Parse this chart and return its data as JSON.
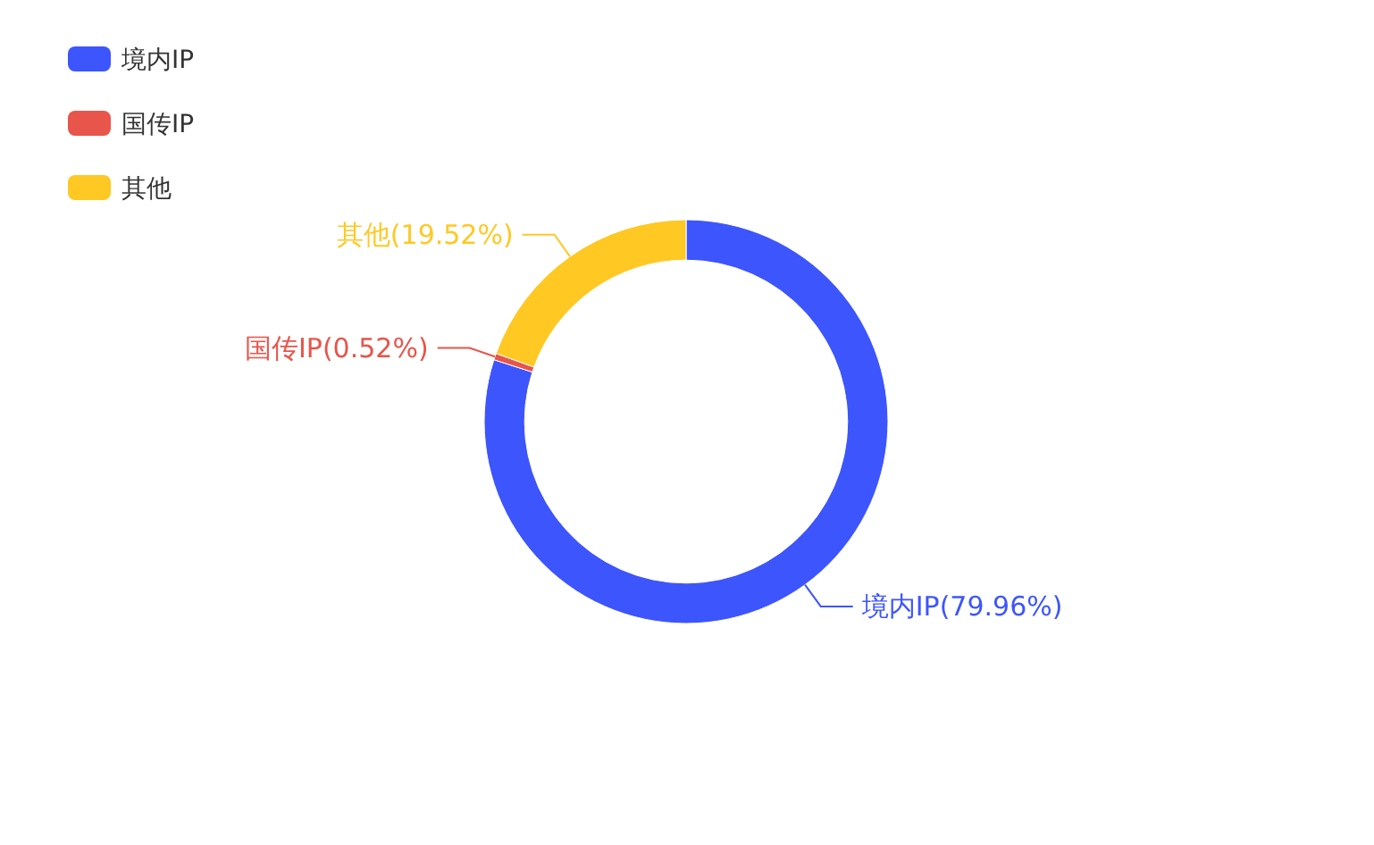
{
  "chart_data": {
    "type": "donut",
    "categories": [
      "境内IP",
      "国传IP",
      "其他"
    ],
    "values": [
      79.96,
      0.52,
      19.52
    ],
    "colors": [
      "#3d55fd",
      "#e8554a",
      "#ffc823"
    ],
    "value_labels": [
      "境内IP(79.96%)",
      "国传IP(0.52%)",
      "其他(19.52%)"
    ],
    "legend": "top left"
  }
}
